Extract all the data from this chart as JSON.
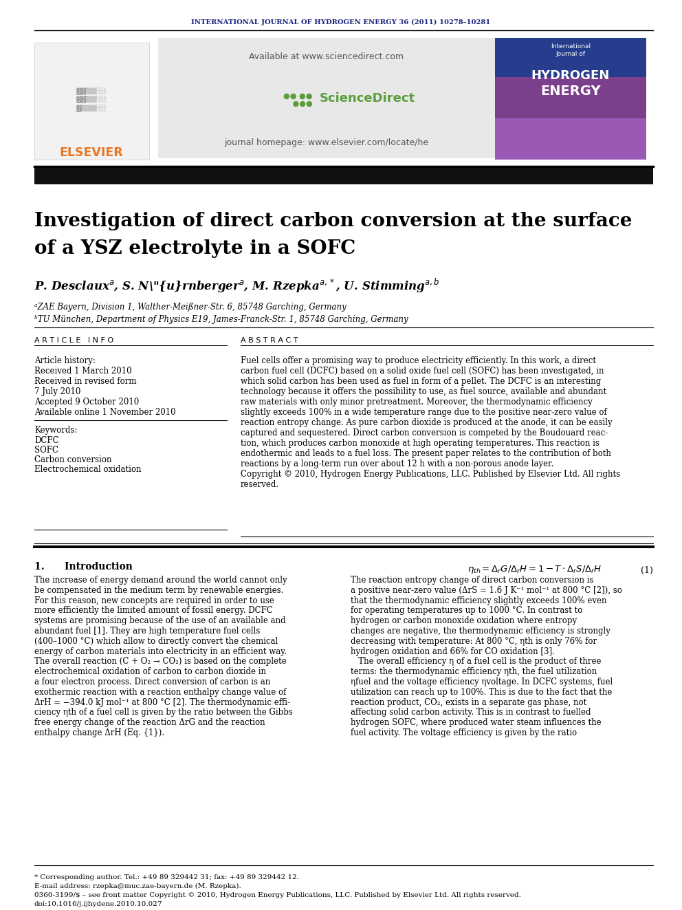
{
  "journal_header": "INTERNATIONAL JOURNAL OF HYDROGEN ENERGY 36 (2011) 10278–10281",
  "journal_header_color": "#1a237e",
  "title_line1": "Investigation of direct carbon conversion at the surface",
  "title_line2": "of a YSZ electrolyte in a SOFC",
  "authors_plain": "P. Desclaux",
  "affil_a": "ᵃZAE Bayern, Division 1, Walther-Meißner-Str. 6, 85748 Garching, Germany",
  "affil_b": "ᵇTU München, Department of Physics E19, James-Franck-Str. 1, 85748 Garching, Germany",
  "article_info_label": "A R T I C L E   I N F O",
  "abstract_label": "A B S T R A C T",
  "article_history_label": "Article history:",
  "received1": "Received 1 March 2010",
  "received2": "Received in revised form",
  "received2b": "7 July 2010",
  "accepted": "Accepted 9 October 2010",
  "available": "Available online 1 November 2010",
  "keywords_label": "Keywords:",
  "keywords": [
    "DCFC",
    "SOFC",
    "Carbon conversion",
    "Electrochemical oxidation"
  ],
  "abstract_lines": [
    "Fuel cells offer a promising way to produce electricity efficiently. In this work, a direct",
    "carbon fuel cell (DCFC) based on a solid oxide fuel cell (SOFC) has been investigated, in",
    "which solid carbon has been used as fuel in form of a pellet. The DCFC is an interesting",
    "technology because it offers the possibility to use, as fuel source, available and abundant",
    "raw materials with only minor pretreatment. Moreover, the thermodynamic efficiency",
    "slightly exceeds 100% in a wide temperature range due to the positive near-zero value of",
    "reaction entropy change. As pure carbon dioxide is produced at the anode, it can be easily",
    "captured and sequestered. Direct carbon conversion is competed by the Boudouard reac-",
    "tion, which produces carbon monoxide at high operating temperatures. This reaction is",
    "endothermic and leads to a fuel loss. The present paper relates to the contribution of both",
    "reactions by a long-term run over about 12 h with a non-porous anode layer.",
    "Copyright © 2010, Hydrogen Energy Publications, LLC. Published by Elsevier Ltd. All rights",
    "reserved."
  ],
  "section1_title": "1.      Introduction",
  "intro_lines": [
    "The increase of energy demand around the world cannot only",
    "be compensated in the medium term by renewable energies.",
    "For this reason, new concepts are required in order to use",
    "more efficiently the limited amount of fossil energy. DCFC",
    "systems are promising because of the use of an available and",
    "abundant fuel [1]. They are high temperature fuel cells",
    "(400–1000 °C) which allow to directly convert the chemical",
    "energy of carbon materials into electricity in an efficient way.",
    "The overall reaction (C + O₂ → CO₂) is based on the complete",
    "electrochemical oxidation of carbon to carbon dioxide in",
    "a four electron process. Direct conversion of carbon is an",
    "exothermic reaction with a reaction enthalpy change value of",
    "ΔrH = −394.0 kJ mol⁻¹ at 800 °C [2]. The thermodynamic effi-",
    "ciency ηth of a fuel cell is given by the ratio between the Gibbs",
    "free energy change of the reaction ΔrG and the reaction",
    "enthalpy change ΔrH (Eq. {1})."
  ],
  "right_intro_lines": [
    "The reaction entropy change of direct carbon conversion is",
    "a positive near-zero value (ΔrS = 1.6 J K⁻¹ mol⁻¹ at 800 °C [2]), so",
    "that the thermodynamic efficiency slightly exceeds 100% even",
    "for operating temperatures up to 1000 °C. In contrast to",
    "hydrogen or carbon monoxide oxidation where entropy",
    "changes are negative, the thermodynamic efficiency is strongly",
    "decreasing with temperature: At 800 °C, ηth is only 76% for",
    "hydrogen oxidation and 66% for CO oxidation [3].",
    "   The overall efficiency η of a fuel cell is the product of three",
    "terms: the thermodynamic efficiency ηth, the fuel utilization",
    "ηfuel and the voltage efficiency ηvoltage. In DCFC systems, fuel",
    "utilization can reach up to 100%. This is due to the fact that the",
    "reaction product, CO₂, exists in a separate gas phase, not",
    "affecting solid carbon activity. This is in contrast to fuelled",
    "hydrogen SOFC, where produced water steam influences the",
    "fuel activity. The voltage efficiency is given by the ratio"
  ],
  "eq_number": "(1)",
  "footnote_star": "* Corresponding author. Tel.: +49 89 329442 31; fax: +49 89 329442 12.",
  "footnote_email": "E-mail address: rzepka@muc.zae-bayern.de (M. Rzepka).",
  "footnote_issn": "0360-3199/$ – see front matter Copyright © 2010, Hydrogen Energy Publications, LLC. Published by Elsevier Ltd. All rights reserved.",
  "footnote_doi": "doi:10.1016/j.ijhydene.2010.10.027",
  "bg_color": "#ffffff"
}
